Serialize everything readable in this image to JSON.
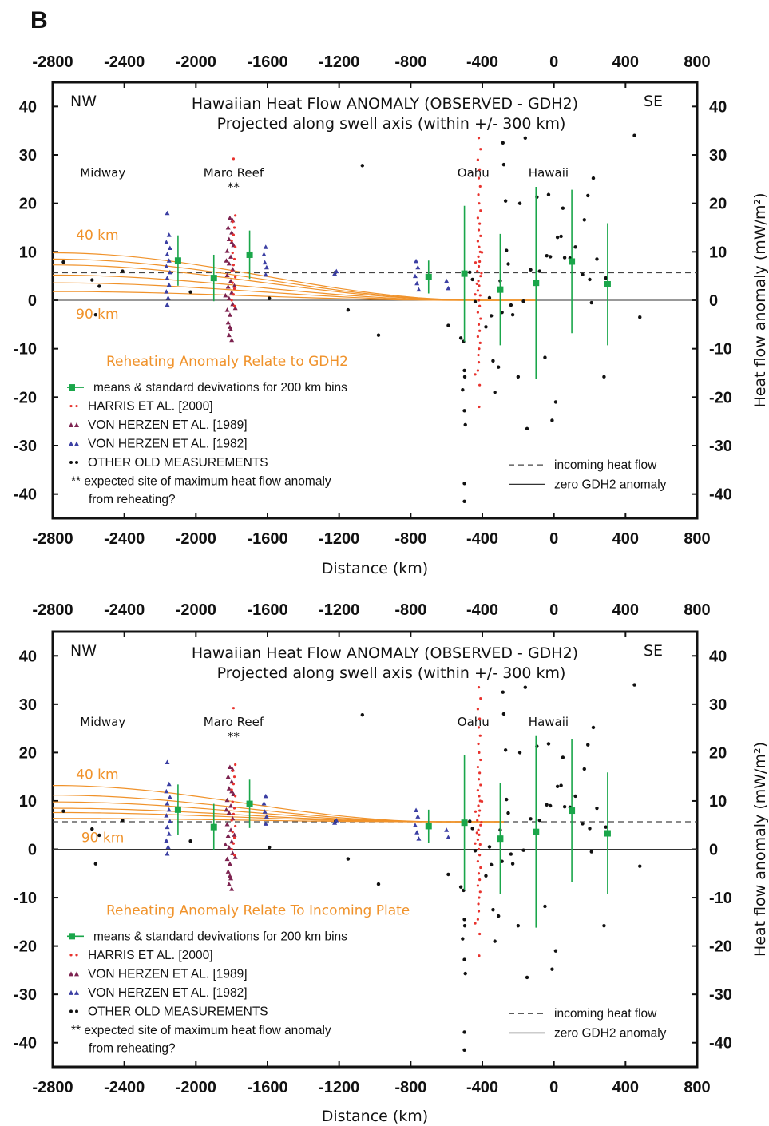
{
  "figure": {
    "panel_letter": "B",
    "colors": {
      "harris": "#e8332e",
      "vh1989": "#7d2350",
      "vh1982": "#3b3fa3",
      "other": "#111111",
      "mean": "#1aa64a",
      "curve": "#f0922a"
    }
  },
  "chart_data": [
    {
      "type": "scatter",
      "title_line1": "Hawaiian Heat Flow ANOMALY (OBSERVED - GDH2)",
      "title_line2": "Projected along swell axis (within +/- 300 km)",
      "corner_left": "NW",
      "corner_right": "SE",
      "xlabel": "Distance (km)",
      "ylabel": "Heat flow anomaly (mW/m²)",
      "xlim": [
        -2800,
        800
      ],
      "ylim": [
        -45,
        45
      ],
      "x_ticks": [
        "-2800",
        "-2400",
        "-2000",
        "-1600",
        "-1200",
        "-800",
        "-400",
        "0",
        "400",
        "800"
      ],
      "y_ticks": [
        "40",
        "30",
        "20",
        "10",
        "0",
        "-10",
        "-20",
        "-30",
        "-40"
      ],
      "places": [
        {
          "label": "Midway",
          "x": -2520,
          "y": 25.5
        },
        {
          "label": "Maro Reef",
          "x": -1790,
          "y": 25.5
        },
        {
          "label": "**",
          "x": -1790,
          "y": 22.5
        },
        {
          "label": "Oahu",
          "x": -450,
          "y": 25.5
        },
        {
          "label": "Hawaii",
          "x": -30,
          "y": 25.5
        }
      ],
      "incoming_heat_flow": 5.7,
      "curve_labels": [
        {
          "label": "40 km",
          "x": -2670,
          "y": 12.5
        },
        {
          "label": "90 km",
          "x": -2670,
          "y": -3.8
        }
      ],
      "curves_start": [
        9.8,
        8.5,
        7.3,
        5.2,
        3.6,
        1.8
      ],
      "curves_end_x": [
        -400,
        -420,
        -440,
        -470,
        -520,
        -560
      ],
      "curves_endval": 0,
      "reheat_label": "Reheating Anomaly Relate to GDH2",
      "legend": {
        "means": "means & standard devivations for 200 km bins",
        "harris": "HARRIS ET AL. [2000]",
        "vh1989": "VON HERZEN ET AL. [1989]",
        "vh1982": "VON HERZEN ET AL. [1982]",
        "other": "OTHER OLD MEASUREMENTS",
        "star1": "** expected site of maximum heat flow anomaly",
        "star2": "from reheating?",
        "dashed": "incoming heat flow",
        "solid": "zero GDH2 anomaly"
      },
      "means": [
        {
          "x": -2100,
          "y": 8.2,
          "sd": 5.2
        },
        {
          "x": -1900,
          "y": 4.6,
          "sd": 4.8
        },
        {
          "x": -1700,
          "y": 9.4,
          "sd": 5.0
        },
        {
          "x": -700,
          "y": 4.8,
          "sd": 3.4
        },
        {
          "x": -500,
          "y": 5.5,
          "sd": 14.0
        },
        {
          "x": -300,
          "y": 2.2,
          "sd": 11.5
        },
        {
          "x": -100,
          "y": 3.6,
          "sd": 19.8
        },
        {
          "x": 100,
          "y": 8.0,
          "sd": 14.8
        },
        {
          "x": 300,
          "y": 3.3,
          "sd": 12.6
        }
      ],
      "other_points": [
        [
          -2740,
          7.9
        ],
        [
          -2580,
          4.2
        ],
        [
          -2540,
          2.9
        ],
        [
          -2410,
          6.0
        ],
        [
          -2560,
          -3.0
        ],
        [
          -2030,
          1.7
        ],
        [
          -1590,
          0.4
        ],
        [
          -1220,
          5.8
        ],
        [
          -1150,
          -2.0
        ],
        [
          -1070,
          27.8
        ],
        [
          -980,
          -7.2
        ],
        [
          -590,
          -5.2
        ],
        [
          -520,
          -7.8
        ],
        [
          -505,
          -8.5
        ],
        [
          -500,
          -14.5
        ],
        [
          -498,
          -15.8
        ],
        [
          -510,
          -18.5
        ],
        [
          -500,
          -22.8
        ],
        [
          -495,
          -25.7
        ],
        [
          -500,
          -37.8
        ],
        [
          -500,
          -41.5
        ],
        [
          -470,
          5.8
        ],
        [
          -455,
          4.3
        ],
        [
          -440,
          -0.3
        ],
        [
          -380,
          -5.5
        ],
        [
          -360,
          0.5
        ],
        [
          -350,
          -3.2
        ],
        [
          -340,
          -12.5
        ],
        [
          -330,
          -19.0
        ],
        [
          -310,
          -13.8
        ],
        [
          -300,
          4.0
        ],
        [
          -295,
          2.5
        ],
        [
          -290,
          -2.5
        ],
        [
          -285,
          32.5
        ],
        [
          -280,
          28.0
        ],
        [
          -270,
          20.5
        ],
        [
          -265,
          10.3
        ],
        [
          -255,
          7.5
        ],
        [
          -240,
          -1.0
        ],
        [
          -230,
          -3.0
        ],
        [
          -200,
          -15.8
        ],
        [
          -190,
          20.0
        ],
        [
          -170,
          -0.2
        ],
        [
          -160,
          33.5
        ],
        [
          -150,
          -26.5
        ],
        [
          -130,
          6.3
        ],
        [
          -95,
          21.3
        ],
        [
          -80,
          6.0
        ],
        [
          -50,
          -11.8
        ],
        [
          -40,
          9.2
        ],
        [
          -30,
          21.8
        ],
        [
          -20,
          9.0
        ],
        [
          -10,
          -24.8
        ],
        [
          10,
          -21.0
        ],
        [
          20,
          13.0
        ],
        [
          40,
          13.2
        ],
        [
          50,
          19.0
        ],
        [
          60,
          8.8
        ],
        [
          90,
          8.7
        ],
        [
          120,
          11.0
        ],
        [
          160,
          5.3
        ],
        [
          170,
          16.6
        ],
        [
          190,
          21.6
        ],
        [
          200,
          4.3
        ],
        [
          210,
          -0.5
        ],
        [
          220,
          25.2
        ],
        [
          240,
          8.5
        ],
        [
          280,
          -15.8
        ],
        [
          290,
          4.6
        ],
        [
          450,
          34.0
        ],
        [
          480,
          -3.5
        ]
      ],
      "harris_points": [
        [
          -1790,
          29.2
        ],
        [
          -1780,
          17.5
        ],
        [
          -1795,
          16.2
        ],
        [
          -1785,
          15.0
        ],
        [
          -1790,
          13.5
        ],
        [
          -1800,
          12.3
        ],
        [
          -1780,
          11.0
        ],
        [
          -1795,
          9.8
        ],
        [
          -1785,
          8.5
        ],
        [
          -1790,
          7.3
        ],
        [
          -1800,
          6.0
        ],
        [
          -1780,
          4.8
        ],
        [
          -1795,
          3.6
        ],
        [
          -1785,
          2.4
        ],
        [
          -1790,
          1.2
        ],
        [
          -1800,
          0.0
        ],
        [
          -1785,
          -1.2
        ],
        [
          -420,
          33.5
        ],
        [
          -410,
          31.2
        ],
        [
          -425,
          29.0
        ],
        [
          -415,
          27.0
        ],
        [
          -420,
          25.2
        ],
        [
          -412,
          23.5
        ],
        [
          -422,
          21.8
        ],
        [
          -418,
          20.0
        ],
        [
          -410,
          18.5
        ],
        [
          -425,
          17.0
        ],
        [
          -415,
          15.8
        ],
        [
          -420,
          14.5
        ],
        [
          -410,
          13.3
        ],
        [
          -425,
          12.2
        ],
        [
          -418,
          11.0
        ],
        [
          -412,
          10.0
        ],
        [
          -422,
          9.0
        ],
        [
          -415,
          8.0
        ],
        [
          -420,
          7.0
        ],
        [
          -428,
          6.0
        ],
        [
          -410,
          5.0
        ],
        [
          -422,
          4.0
        ],
        [
          -418,
          3.0
        ],
        [
          -425,
          2.0
        ],
        [
          -412,
          1.0
        ],
        [
          -420,
          0.0
        ],
        [
          -415,
          -1.2
        ],
        [
          -425,
          -2.5
        ],
        [
          -410,
          -3.8
        ],
        [
          -420,
          -5.0
        ],
        [
          -415,
          -6.3
        ],
        [
          -425,
          -7.5
        ],
        [
          -412,
          -8.8
        ],
        [
          -418,
          -10.0
        ],
        [
          -422,
          -11.3
        ],
        [
          -420,
          -12.8
        ],
        [
          -425,
          -14.5
        ],
        [
          -440,
          -15.3
        ],
        [
          -415,
          -17.5
        ],
        [
          -418,
          -22.0
        ],
        [
          -440,
          1.2
        ],
        [
          -430,
          3.4
        ],
        [
          -405,
          5.6
        ],
        [
          -438,
          7.8
        ],
        [
          -402,
          9.9
        ]
      ],
      "vh1989_points": [
        [
          -1810,
          17.0
        ],
        [
          -1795,
          16.5
        ],
        [
          -1820,
          15.0
        ],
        [
          -1800,
          14.0
        ],
        [
          -1815,
          12.6
        ],
        [
          -1790,
          11.4
        ],
        [
          -1825,
          10.2
        ],
        [
          -1805,
          9.0
        ],
        [
          -1815,
          7.6
        ],
        [
          -1795,
          6.4
        ],
        [
          -1825,
          5.2
        ],
        [
          -1805,
          4.0
        ],
        [
          -1820,
          2.8
        ],
        [
          -1800,
          1.6
        ],
        [
          -1815,
          0.4
        ],
        [
          -1795,
          -0.8
        ],
        [
          -1825,
          -2.0
        ],
        [
          -1810,
          -3.0
        ],
        [
          -1820,
          -4.6
        ],
        [
          -1805,
          -6.0
        ],
        [
          -1815,
          -7.2
        ],
        [
          -1800,
          -8.2
        ],
        [
          -1830,
          8.2
        ],
        [
          -1785,
          3.0
        ],
        [
          -1835,
          1.0
        ],
        [
          -1780,
          -1.6
        ],
        [
          -1800,
          12.0
        ],
        [
          -1810,
          -5.5
        ]
      ],
      "vh1982_points": [
        [
          -2160,
          18.0
        ],
        [
          -2150,
          13.5
        ],
        [
          -2165,
          12.0
        ],
        [
          -2145,
          10.8
        ],
        [
          -2160,
          9.5
        ],
        [
          -2150,
          8.2
        ],
        [
          -2165,
          7.0
        ],
        [
          -2145,
          5.8
        ],
        [
          -2160,
          4.6
        ],
        [
          -2150,
          3.2
        ],
        [
          -2165,
          1.8
        ],
        [
          -2155,
          0.5
        ],
        [
          -2160,
          -0.9
        ],
        [
          -1610,
          11.0
        ],
        [
          -1620,
          9.5
        ],
        [
          -1615,
          7.8
        ],
        [
          -1605,
          6.8
        ],
        [
          -1610,
          5.3
        ],
        [
          -1215,
          6.0
        ],
        [
          -1225,
          5.5
        ],
        [
          -770,
          8.1
        ],
        [
          -760,
          6.8
        ],
        [
          -775,
          5.0
        ],
        [
          -765,
          3.5
        ],
        [
          -755,
          2.2
        ],
        [
          -600,
          4.0
        ],
        [
          -590,
          2.5
        ]
      ]
    },
    {
      "type": "scatter",
      "title_line1": "Hawaiian Heat Flow ANOMALY (OBSERVED - GDH2)",
      "title_line2": "Projected along swell axis (within +/- 300 km)",
      "corner_left": "NW",
      "corner_right": "SE",
      "xlabel": "Distance (km)",
      "ylabel": "Heat flow anomaly (mW/m²)",
      "xlim": [
        -2800,
        800
      ],
      "ylim": [
        -45,
        45
      ],
      "x_ticks": [
        "-2800",
        "-2400",
        "-2000",
        "-1600",
        "-1200",
        "-800",
        "-400",
        "0",
        "400",
        "800"
      ],
      "y_ticks": [
        "40",
        "30",
        "20",
        "10",
        "0",
        "-10",
        "-20",
        "-30",
        "-40"
      ],
      "places": [
        {
          "label": "Midway",
          "x": -2520,
          "y": 25.5
        },
        {
          "label": "Maro Reef",
          "x": -1790,
          "y": 25.5
        },
        {
          "label": "**",
          "x": -1790,
          "y": 22.5
        },
        {
          "label": "Oahu",
          "x": -450,
          "y": 25.5
        },
        {
          "label": "Hawaii",
          "x": -30,
          "y": 25.5
        }
      ],
      "incoming_heat_flow": 5.7,
      "curve_labels": [
        {
          "label": "40 km",
          "x": -2670,
          "y": 14.5
        },
        {
          "label": "90 km",
          "x": -2640,
          "y": 1.5
        }
      ],
      "curves_start": [
        13.2,
        11.2,
        9.8,
        8.5,
        7.6,
        6.4
      ],
      "curves_end_x": [
        -620,
        -640,
        -660,
        -680,
        -700,
        -720
      ],
      "curves_endval": 5.7,
      "reheat_label": "Reheating Anomaly Relate To Incoming Plate",
      "legend": {
        "means": "means & standard devivations for 200 km bins",
        "harris": "HARRIS ET AL. [2000]",
        "vh1989": "VON HERZEN ET AL. [1989]",
        "vh1982": "VON HERZEN ET AL. [1982]",
        "other": "OTHER OLD MEASUREMENTS",
        "star1": "** expected site of maximum heat flow anomaly",
        "star2": "from reheating?",
        "dashed": "incoming heat flow",
        "solid": "zero GDH2 anomaly"
      },
      "same_points_as_panel": 0
    }
  ]
}
